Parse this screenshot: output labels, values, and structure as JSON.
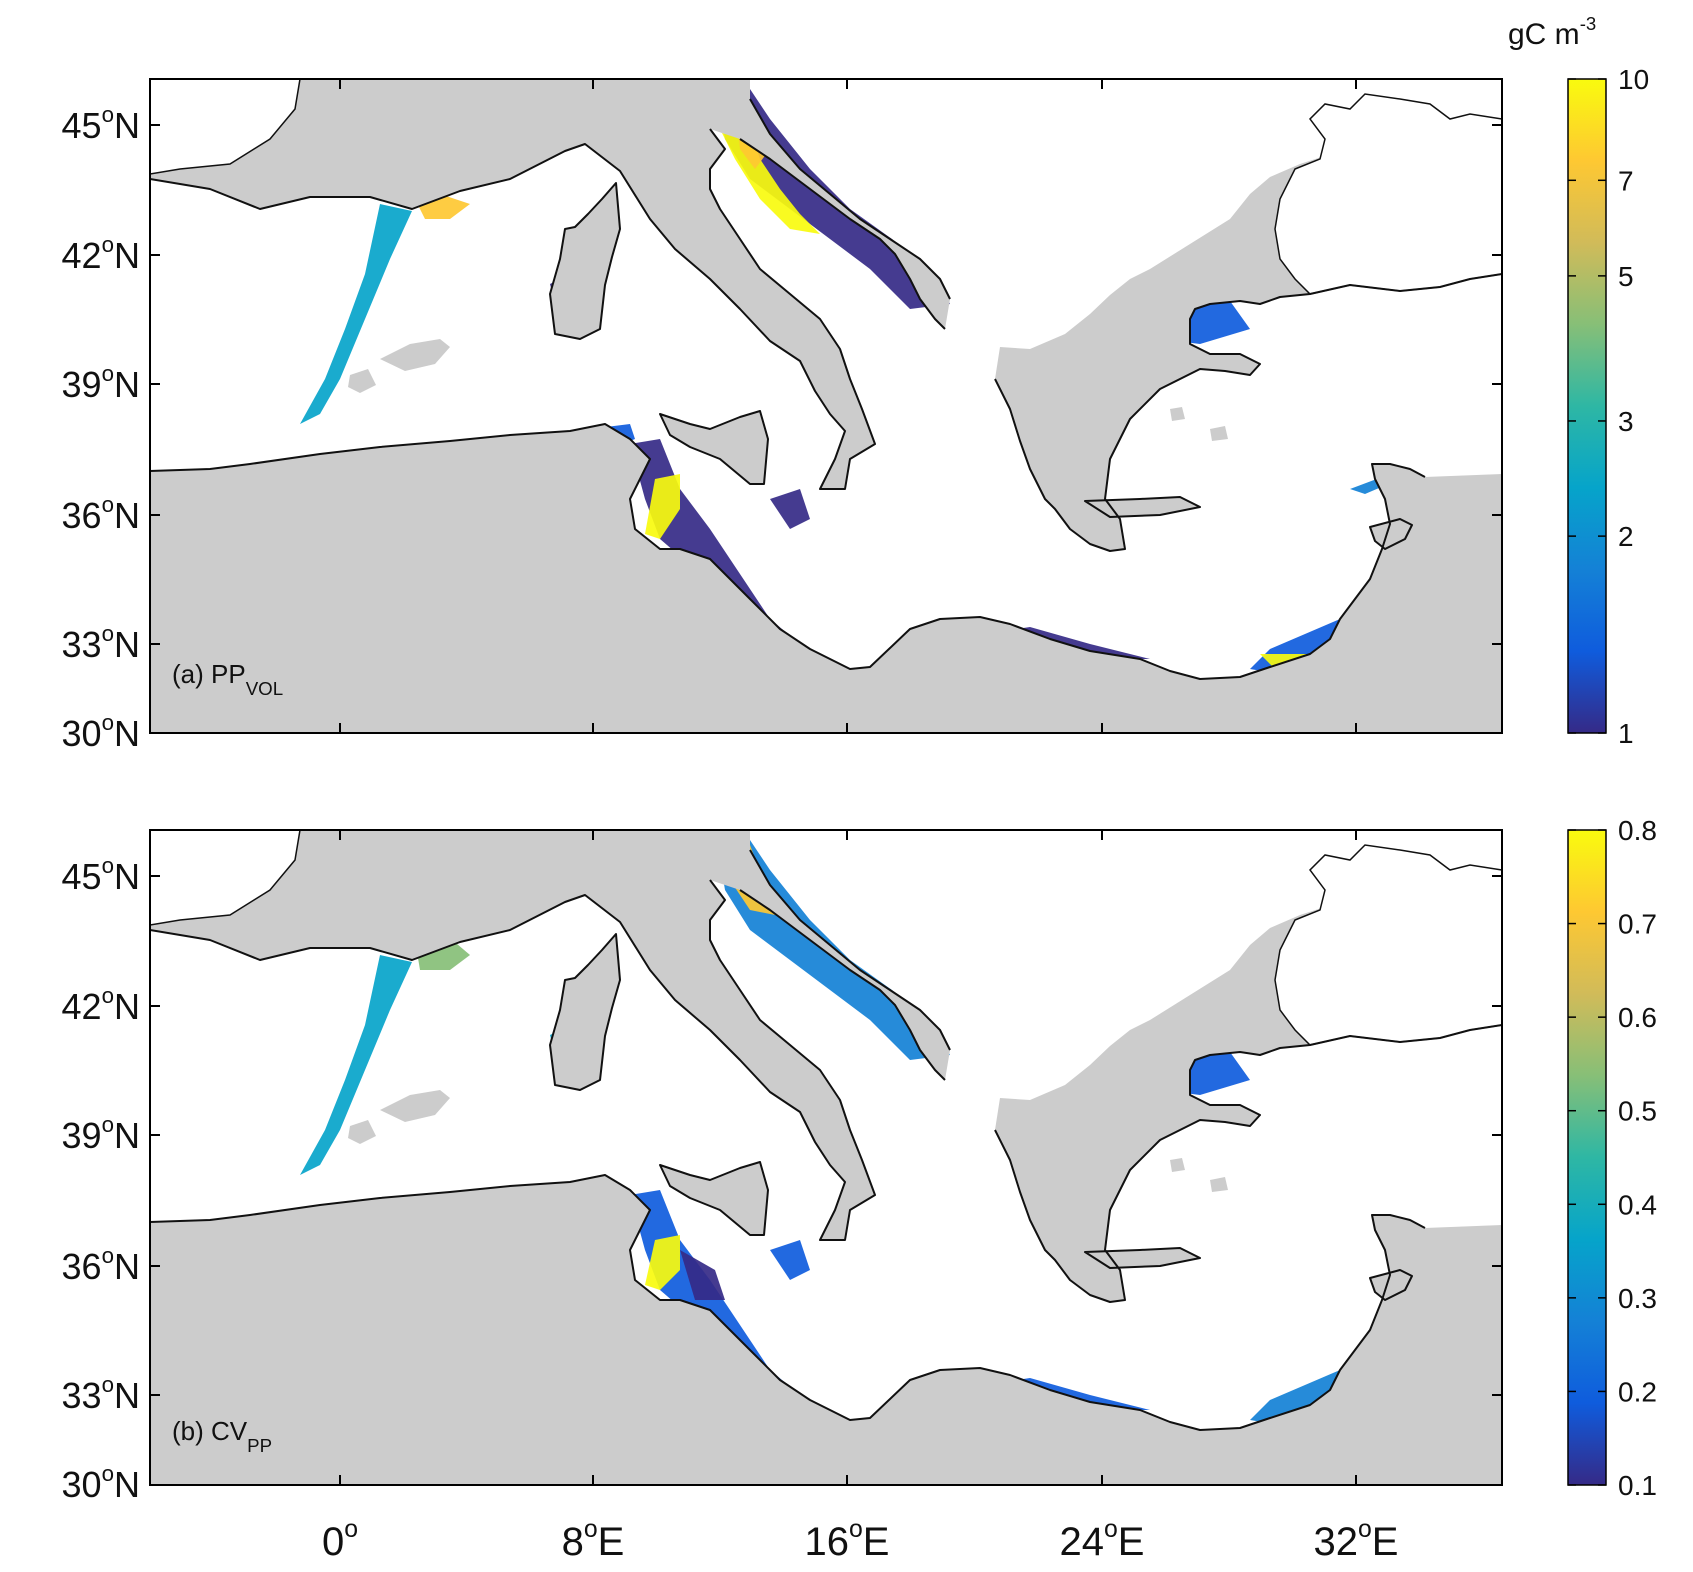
{
  "colors": {
    "land": "#cccccc",
    "sea": "#ffffff",
    "coast": "#111111",
    "shelf_edge": "#808080",
    "frame": "#000000",
    "colormap": [
      "#352a87",
      "#0f5cdd",
      "#1481d6",
      "#06a4ca",
      "#2eb7a4",
      "#87bf77",
      "#d1bb59",
      "#fec832",
      "#f9fb0e"
    ]
  },
  "map": {
    "lon_ticks": [
      {
        "base": "0",
        "sup": "o",
        "suffix": ""
      },
      {
        "base": "8",
        "sup": "o",
        "suffix": "E"
      },
      {
        "base": "16",
        "sup": "o",
        "suffix": "E"
      },
      {
        "base": "24",
        "sup": "o",
        "suffix": "E"
      },
      {
        "base": "32",
        "sup": "o",
        "suffix": "E"
      }
    ],
    "lat_ticks": [
      {
        "base": "45",
        "sup": "o",
        "suffix": "N"
      },
      {
        "base": "42",
        "sup": "o",
        "suffix": "N"
      },
      {
        "base": "39",
        "sup": "o",
        "suffix": "N"
      },
      {
        "base": "36",
        "sup": "o",
        "suffix": "N"
      },
      {
        "base": "33",
        "sup": "o",
        "suffix": "N"
      },
      {
        "base": "30",
        "sup": "o",
        "suffix": "N"
      }
    ]
  },
  "panels": [
    {
      "id": "a",
      "label_prefix": "(a) PP",
      "label_sub": "VOL",
      "colorbar": {
        "title_base": "gC m",
        "title_sup": "-3",
        "scale": "log",
        "range": [
          1,
          10
        ],
        "ticks": [
          "10",
          "7",
          "5",
          "3",
          "2",
          "1"
        ]
      }
    },
    {
      "id": "b",
      "label_prefix": "(b) CV",
      "label_sub": "PP",
      "colorbar": {
        "scale": "linear",
        "range": [
          0.1,
          0.8
        ],
        "ticks": [
          "0.8",
          "0.7",
          "0.6",
          "0.5",
          "0.4",
          "0.3",
          "0.2",
          "0.1"
        ]
      }
    }
  ]
}
